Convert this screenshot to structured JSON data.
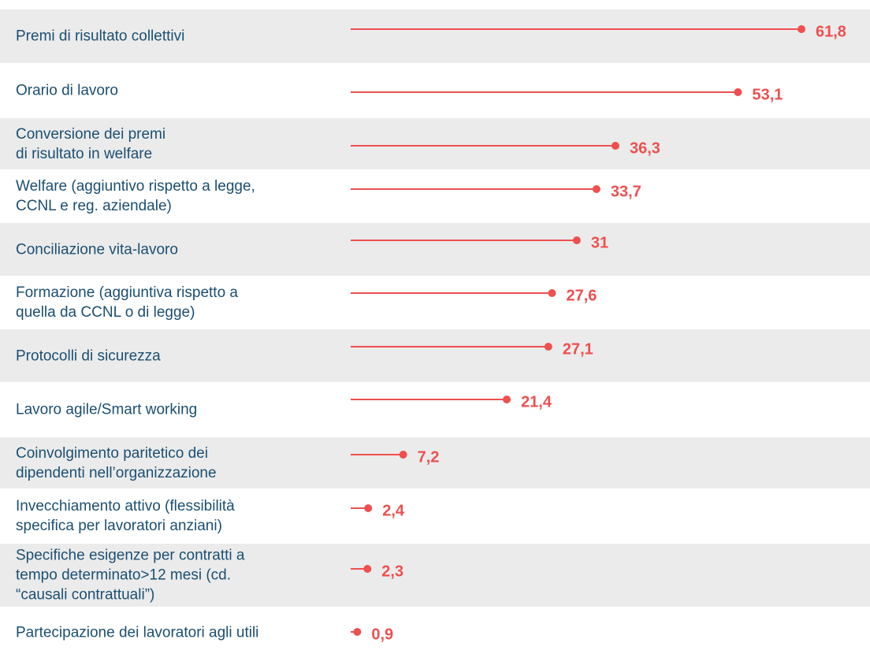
{
  "chart_data": {
    "type": "lollipop",
    "categories": [
      "Premi di risultato collettivi",
      "Orario di lavoro",
      "Conversione dei premi\ndi risultato in welfare",
      "Welfare (aggiuntivo rispetto a legge,\nCCNL e reg. aziendale)",
      "Conciliazione vita-lavoro",
      "Formazione (aggiuntiva rispetto a\nquella da CCNL o di legge)",
      "Protocolli di sicurezza",
      "Lavoro agile/Smart working",
      "Coinvolgimento paritetico dei\ndipendenti nell’organizzazione",
      "Invecchiamento attivo (flessibilità\nspecifica per lavoratori anziani)",
      "Specifiche esigenze per contratti a\ntempo determinato>12 mesi (cd.\n“causali contrattuali”)",
      "Partecipazione dei lavoratori agli utili"
    ],
    "values": [
      61.8,
      53.1,
      36.3,
      33.7,
      31,
      27.6,
      27.1,
      21.4,
      7.2,
      2.4,
      2.3,
      0.9
    ],
    "value_labels": [
      "61,8",
      "53,1",
      "36,3",
      "33,7",
      "31",
      "27,6",
      "27,1",
      "21,4",
      "7,2",
      "2,4",
      "2,3",
      "0,9"
    ],
    "color": "#ef4f4f"
  }
}
